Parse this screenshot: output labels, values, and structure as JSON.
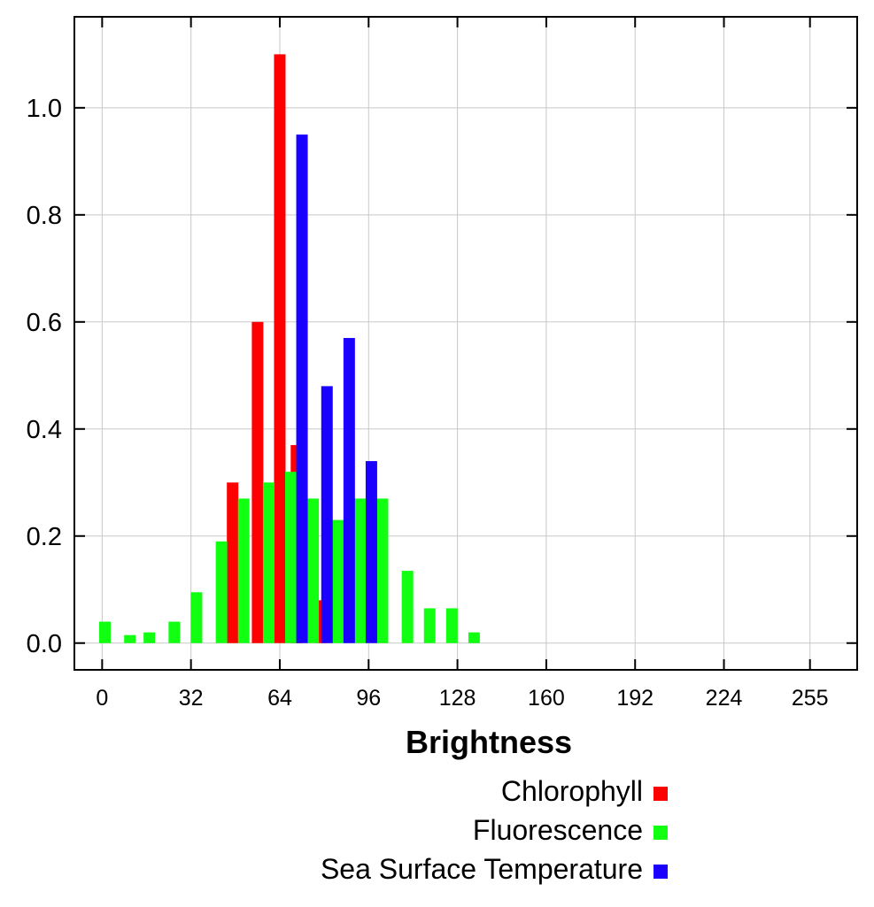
{
  "chart_data": {
    "type": "bar",
    "title": "",
    "xlabel": "Brightness",
    "ylabel": "",
    "xlim": [
      -10,
      272
    ],
    "ylim": [
      -0.05,
      1.17
    ],
    "grid": true,
    "legend_position": "bottom-right",
    "x_ticks": [
      {
        "value": 0,
        "label": "0"
      },
      {
        "value": 32,
        "label": "32"
      },
      {
        "value": 64,
        "label": "64"
      },
      {
        "value": 96,
        "label": "96"
      },
      {
        "value": 128,
        "label": "128"
      },
      {
        "value": 160,
        "label": "160"
      },
      {
        "value": 192,
        "label": "192"
      },
      {
        "value": 224,
        "label": "224"
      },
      {
        "value": 255,
        "label": "255"
      }
    ],
    "y_ticks": [
      {
        "value": 0.0,
        "label": "0.0"
      },
      {
        "value": 0.2,
        "label": "0.2"
      },
      {
        "value": 0.4,
        "label": "0.4"
      },
      {
        "value": 0.6,
        "label": "0.6"
      },
      {
        "value": 0.8,
        "label": "0.8"
      },
      {
        "value": 1.0,
        "label": "1.0"
      }
    ],
    "series": [
      {
        "name": "Chlorophyll",
        "color": "#ff0000",
        "points": [
          {
            "x": 47,
            "y": 0.3
          },
          {
            "x": 56,
            "y": 0.6
          },
          {
            "x": 64,
            "y": 1.1
          },
          {
            "x": 70,
            "y": 0.37
          },
          {
            "x": 79,
            "y": 0.08
          }
        ]
      },
      {
        "name": "Fluorescence",
        "color": "#11ff11",
        "points": [
          {
            "x": 1,
            "y": 0.04
          },
          {
            "x": 10,
            "y": 0.015
          },
          {
            "x": 17,
            "y": 0.02
          },
          {
            "x": 26,
            "y": 0.04
          },
          {
            "x": 34,
            "y": 0.095
          },
          {
            "x": 43,
            "y": 0.19
          },
          {
            "x": 51,
            "y": 0.27
          },
          {
            "x": 60,
            "y": 0.3
          },
          {
            "x": 68,
            "y": 0.32
          },
          {
            "x": 76,
            "y": 0.27
          },
          {
            "x": 85,
            "y": 0.23
          },
          {
            "x": 93,
            "y": 0.27
          },
          {
            "x": 101,
            "y": 0.27
          },
          {
            "x": 110,
            "y": 0.135
          },
          {
            "x": 118,
            "y": 0.065
          },
          {
            "x": 126,
            "y": 0.065
          },
          {
            "x": 134,
            "y": 0.02
          }
        ]
      },
      {
        "name": "Sea Surface Temperature",
        "color": "#1a00ff",
        "points": [
          {
            "x": 72,
            "y": 0.95
          },
          {
            "x": 81,
            "y": 0.48
          },
          {
            "x": 89,
            "y": 0.57
          },
          {
            "x": 97,
            "y": 0.34
          }
        ]
      }
    ]
  }
}
